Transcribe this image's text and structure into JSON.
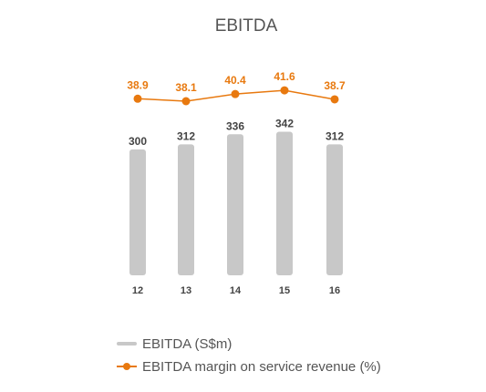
{
  "chart_data": {
    "type": "bar",
    "title": "EBITDA",
    "categories": [
      "12",
      "13",
      "14",
      "15",
      "16"
    ],
    "series": [
      {
        "name": "EBITDA (S$m)",
        "type": "bar",
        "values": [
          300,
          312,
          336,
          342,
          312
        ],
        "labels": [
          "300",
          "312",
          "336",
          "342",
          "312"
        ]
      },
      {
        "name": "EBITDA margin on service revenue (%)",
        "type": "line",
        "values": [
          38.9,
          38.1,
          40.4,
          41.6,
          38.7
        ],
        "labels": [
          "38.9",
          "38.1",
          "40.4",
          "41.6",
          "38.7"
        ]
      }
    ],
    "colors": {
      "bar": "#c8c8c8",
      "line": "#e8790f"
    },
    "grid": false,
    "legend_position": "bottom"
  }
}
